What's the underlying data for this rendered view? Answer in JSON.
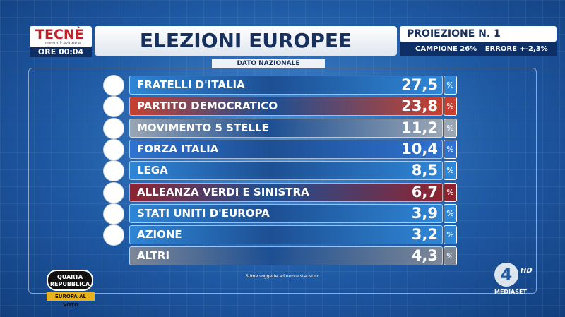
{
  "header": {
    "logo": "TECNÈ",
    "logo_sub": "comunicazione e strategie",
    "time": "ORE 00:04",
    "title": "ELEZIONI EUROPEE",
    "subtitle": "DATO NAZIONALE",
    "projection": "PROIEZIONE N. 1",
    "sample": "CAMPIONE 26%",
    "error": "ERRORE +-2,3%"
  },
  "table": {
    "unit": "%",
    "rows": [
      {
        "party": "FRATELLI D'ITALIA",
        "value": "27,5",
        "color": "#2f86d6"
      },
      {
        "party": "PARTITO DEMOCRATICO",
        "value": "23,8",
        "color": "#c8402f"
      },
      {
        "party": "MOVIMENTO 5 STELLE",
        "value": "11,2",
        "color": "#9aa6b4"
      },
      {
        "party": "FORZA ITALIA",
        "value": "10,4",
        "color": "#2f72d0"
      },
      {
        "party": "LEGA",
        "value": "8,5",
        "color": "#2f86d6"
      },
      {
        "party": "ALLEANZA VERDI E SINISTRA",
        "value": "6,7",
        "color": "#8e2430"
      },
      {
        "party": "STATI UNITI D'EUROPA",
        "value": "3,9",
        "color": "#2f86d6"
      },
      {
        "party": "AZIONE",
        "value": "3,2",
        "color": "#2f86d6"
      },
      {
        "party": "ALTRI",
        "value": "4,3",
        "color": "#7d8796"
      }
    ]
  },
  "footer": {
    "note": "Stime soggette ad errore statistico",
    "show": "QUARTA REPUBBLICA",
    "show_sub": "EUROPA AL VOTO",
    "channel": "4",
    "hd": "HD",
    "network": "MEDIASET"
  }
}
